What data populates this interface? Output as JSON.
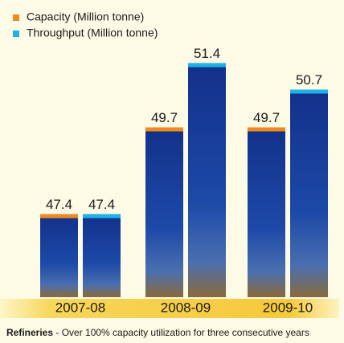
{
  "chart_data": {
    "type": "bar",
    "categories": [
      "2007-08",
      "2008-09",
      "2009-10"
    ],
    "series": [
      {
        "name": "Capacity (Million tonne)",
        "color": "#f08a1f",
        "values": [
          47.4,
          49.7,
          49.7
        ]
      },
      {
        "name": "Throughput (Million tonne)",
        "color": "#1fb2e6",
        "values": [
          47.4,
          51.4,
          50.7
        ]
      }
    ],
    "ylim": [
      45.2,
      52
    ],
    "footnote": {
      "bold": "Refineries",
      "text": " - Over 100% capacity utilization for three consecutive years"
    }
  }
}
